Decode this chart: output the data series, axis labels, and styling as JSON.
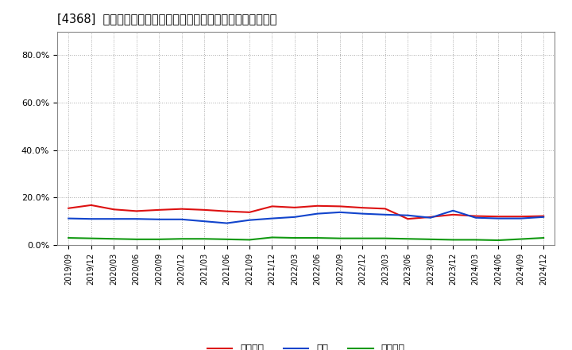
{
  "title": "[4368]  売上債権、在庫、買入債務の総資産に対する比率の推移",
  "x_labels": [
    "2019/09",
    "2019/12",
    "2020/03",
    "2020/06",
    "2020/09",
    "2020/12",
    "2021/03",
    "2021/06",
    "2021/09",
    "2021/12",
    "2022/03",
    "2022/06",
    "2022/09",
    "2022/12",
    "2023/03",
    "2023/06",
    "2023/09",
    "2023/12",
    "2024/03",
    "2024/06",
    "2024/09",
    "2024/12"
  ],
  "売上債権": [
    0.155,
    0.168,
    0.15,
    0.143,
    0.148,
    0.152,
    0.148,
    0.142,
    0.138,
    0.163,
    0.158,
    0.165,
    0.163,
    0.157,
    0.153,
    0.11,
    0.118,
    0.128,
    0.122,
    0.12,
    0.12,
    0.122
  ],
  "在庫": [
    0.112,
    0.11,
    0.11,
    0.11,
    0.108,
    0.108,
    0.1,
    0.092,
    0.105,
    0.112,
    0.118,
    0.132,
    0.138,
    0.132,
    0.128,
    0.125,
    0.115,
    0.145,
    0.115,
    0.112,
    0.112,
    0.118
  ],
  "買入債務": [
    0.03,
    0.028,
    0.026,
    0.024,
    0.024,
    0.026,
    0.026,
    0.024,
    0.022,
    0.032,
    0.03,
    0.03,
    0.028,
    0.028,
    0.028,
    0.026,
    0.024,
    0.022,
    0.022,
    0.02,
    0.025,
    0.03
  ],
  "line_colors": {
    "売上債権": "#dd1111",
    "在庫": "#1144cc",
    "買入債務": "#119911"
  },
  "ylim": [
    0.0,
    0.9
  ],
  "yticks": [
    0.0,
    0.2,
    0.4,
    0.6,
    0.8
  ],
  "ytick_labels": [
    "0.0%",
    "20.0%",
    "40.0%",
    "60.0%",
    "80.0%"
  ],
  "background_color": "#ffffff",
  "plot_bg_color": "#ffffff",
  "grid_color": "#aaaaaa",
  "title_fontsize": 10.5,
  "legend_labels": [
    "売上債権",
    "在庫",
    "買入債務"
  ]
}
